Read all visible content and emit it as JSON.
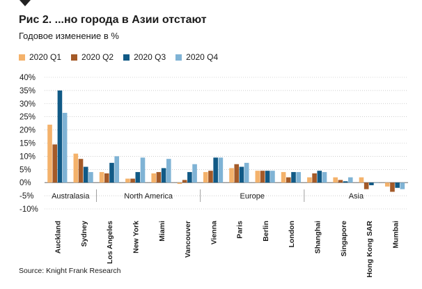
{
  "figure": {
    "title": "Рис 2. ...но города в Азии отстают",
    "subtitle": "Годовое изменение в %",
    "source": "Source: Knight Frank Research"
  },
  "colors": {
    "q1": "#f4b26b",
    "q2": "#a45a28",
    "q3": "#115a86",
    "q4": "#7fb3d5"
  },
  "chart_data": {
    "type": "bar",
    "ylim": [
      -10,
      40
    ],
    "yticks": [
      -10,
      -5,
      0,
      5,
      10,
      15,
      20,
      25,
      30,
      35,
      40
    ],
    "ytick_labels": [
      "-10%",
      "-5%",
      "0%",
      "5%",
      "10%",
      "15%",
      "20%",
      "25%",
      "30%",
      "35%",
      "40%"
    ],
    "grid": true,
    "legend_position": "top-left",
    "categories": [
      "Auckland",
      "Sydney",
      "Los Angeles",
      "New York",
      "Miami",
      "Vancouver",
      "Vienna",
      "Paris",
      "Berlin",
      "London",
      "Shanghai",
      "Singapore",
      "Hong Kong SAR",
      "Mumbai"
    ],
    "groups": [
      {
        "name": "Australasia",
        "categories": [
          "Auckland",
          "Sydney"
        ]
      },
      {
        "name": "North America",
        "categories": [
          "Los Angeles",
          "New York",
          "Miami",
          "Vancouver"
        ]
      },
      {
        "name": "Europe",
        "categories": [
          "Vienna",
          "Paris",
          "Berlin",
          "London"
        ]
      },
      {
        "name": "Asia",
        "categories": [
          "Shanghai",
          "Singapore",
          "Hong Kong SAR",
          "Mumbai"
        ]
      }
    ],
    "series": [
      {
        "name": "2020 Q1",
        "values": [
          22,
          11,
          4,
          1.5,
          3.5,
          -0.5,
          4,
          5.5,
          4.5,
          4,
          2,
          2,
          2,
          -1.5
        ]
      },
      {
        "name": "2020 Q2",
        "values": [
          14.5,
          9,
          3.5,
          1.5,
          4,
          1,
          4.5,
          7,
          4.5,
          2,
          3.5,
          1,
          -2.5,
          -3.5
        ]
      },
      {
        "name": "2020 Q3",
        "values": [
          35,
          6,
          7.5,
          4,
          5.5,
          4,
          9.5,
          6,
          4.5,
          4,
          4.5,
          0.5,
          -1,
          -2
        ]
      },
      {
        "name": "2020 Q4",
        "values": [
          26.5,
          4,
          10,
          9.5,
          9,
          7,
          9.5,
          7.5,
          4.5,
          4,
          4,
          2,
          0,
          -2.5
        ]
      }
    ]
  }
}
